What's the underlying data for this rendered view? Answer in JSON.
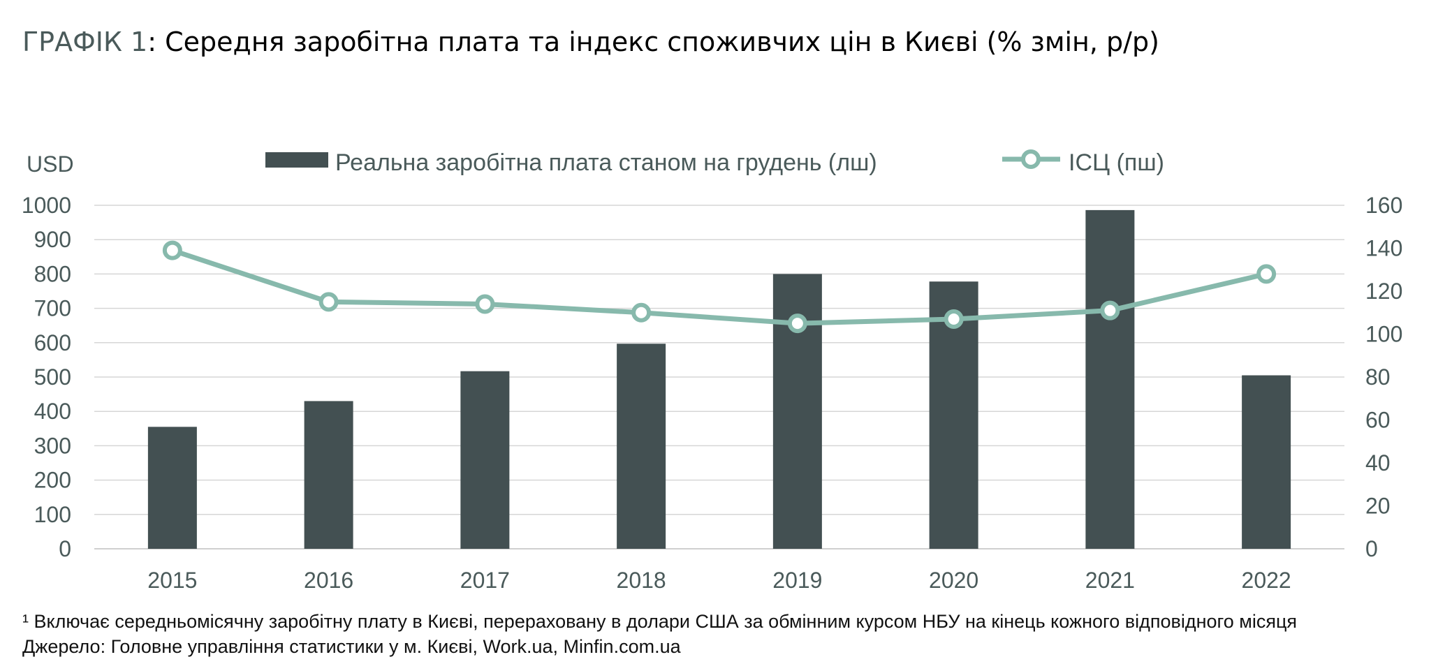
{
  "title": {
    "prefix": "ГРАФІК 1",
    "text": ": Середня заробітна плата та індекс споживчих цін в Києві (% змін, р/р)"
  },
  "chart_data": {
    "type": "bar",
    "categories": [
      "2015",
      "2016",
      "2017",
      "2018",
      "2019",
      "2020",
      "2021",
      "2022"
    ],
    "y_left_label": "USD",
    "y_left_lim": [
      0,
      1000
    ],
    "y_left_ticks": [
      "0",
      "100",
      "200",
      "300",
      "400",
      "500",
      "600",
      "700",
      "800",
      "900",
      "1000"
    ],
    "y_right_lim": [
      0,
      160
    ],
    "y_right_ticks": [
      "0",
      "20",
      "40",
      "60",
      "80",
      "100",
      "120",
      "140",
      "160"
    ],
    "grid": true,
    "legend_position": "top",
    "series": [
      {
        "name": "Реальна заробітна плата станом на грудень (лш)",
        "kind": "bar",
        "axis": "left",
        "color": "#435052",
        "values": [
          355,
          430,
          517,
          597,
          800,
          778,
          986,
          505
        ]
      },
      {
        "name": "ІСЦ (пш)",
        "kind": "line",
        "axis": "right",
        "color": "#87b9ac",
        "values": [
          139,
          115,
          114,
          110,
          105,
          107,
          111,
          128
        ]
      }
    ]
  },
  "footnotes": {
    "note": "¹ Включає середньомісячну заробітну плату в Києві, перераховану в долари США за обмінним курсом НБУ на кінець кожного відповідного місяця",
    "source": "Джерело: Головне управління статистики у м. Києві, Work.ua, Minfin.com.ua"
  }
}
